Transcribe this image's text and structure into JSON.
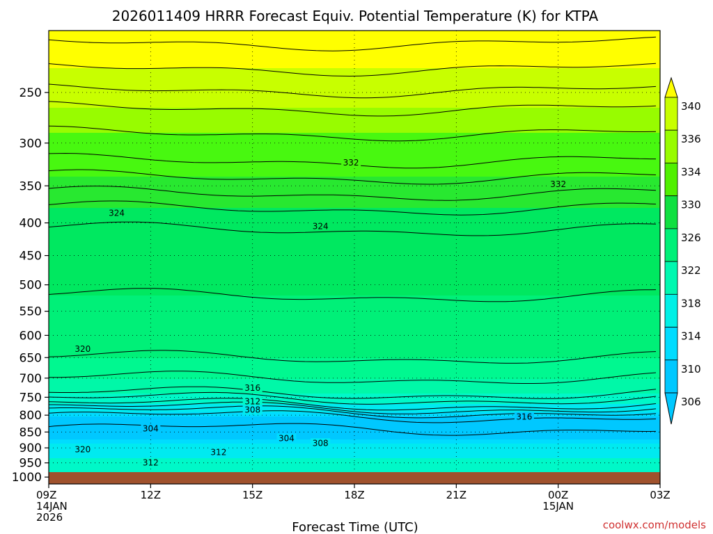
{
  "chart_data": {
    "type": "heatmap",
    "title": "2026011409 HRRR Forecast Equiv. Potential Temperature (K) for KTPA",
    "xlabel": "Forecast Time (UTC)",
    "ylabel": "",
    "x_ticks": [
      {
        "hour": 0,
        "lines": [
          "09Z",
          "14JAN",
          "2026"
        ]
      },
      {
        "hour": 3,
        "lines": [
          "12Z"
        ]
      },
      {
        "hour": 6,
        "lines": [
          "15Z"
        ]
      },
      {
        "hour": 9,
        "lines": [
          "18Z"
        ]
      },
      {
        "hour": 12,
        "lines": [
          "21Z"
        ]
      },
      {
        "hour": 15,
        "lines": [
          "00Z",
          "15JAN"
        ]
      },
      {
        "hour": 18,
        "lines": [
          "03Z"
        ]
      }
    ],
    "xlim_hours": [
      0,
      18
    ],
    "y_scale": "log",
    "y_ticks": [
      250,
      300,
      350,
      400,
      450,
      500,
      550,
      600,
      650,
      700,
      750,
      800,
      850,
      900,
      950,
      1000
    ],
    "ylim": [
      1025,
      200
    ],
    "colorbar": {
      "labels": [
        306,
        310,
        314,
        318,
        322,
        326,
        330,
        334,
        336,
        340
      ],
      "colors": [
        "#00c8ff",
        "#00dcff",
        "#00f0e6",
        "#00f8b0",
        "#00f078",
        "#10e040",
        "#50f000",
        "#98fc00",
        "#c8ff00",
        "#ffff00"
      ],
      "extend": "both"
    },
    "fill_bands": [
      {
        "value": 304,
        "color": "#00c8ff"
      },
      {
        "value": 306,
        "color": "#00dcff"
      },
      {
        "value": 308,
        "color": "#00eaf0"
      },
      {
        "value": 312,
        "color": "#00f8c8"
      },
      {
        "value": 316,
        "color": "#00f8a8"
      },
      {
        "value": 318,
        "color": "#00f890"
      },
      {
        "value": 320,
        "color": "#00f078"
      },
      {
        "value": 322,
        "color": "#00e860"
      },
      {
        "value": 326,
        "color": "#28e830"
      },
      {
        "value": 330,
        "color": "#48f810"
      },
      {
        "value": 334,
        "color": "#98fc00"
      },
      {
        "value": 336,
        "color": "#c8ff00"
      },
      {
        "value": 340,
        "color": "#ffff00"
      }
    ],
    "profile": [
      {
        "p": 200,
        "theta": 343
      },
      {
        "p": 240,
        "theta": 339
      },
      {
        "p": 265,
        "theta": 336
      },
      {
        "p": 290,
        "theta": 334
      },
      {
        "p": 320,
        "theta": 332
      },
      {
        "p": 360,
        "theta": 328
      },
      {
        "p": 390,
        "theta": 325
      },
      {
        "p": 430,
        "theta": 323
      },
      {
        "p": 520,
        "theta": 322
      },
      {
        "p": 600,
        "theta": 321
      },
      {
        "p": 650,
        "theta": 320
      },
      {
        "p": 700,
        "theta": 318
      },
      {
        "p": 740,
        "theta": 316
      },
      {
        "p": 770,
        "theta": 312
      },
      {
        "p": 790,
        "theta": 308
      },
      {
        "p": 810,
        "theta": 305
      },
      {
        "p": 840,
        "theta": 304
      },
      {
        "p": 870,
        "theta": 306
      },
      {
        "p": 900,
        "theta": 310
      },
      {
        "p": 950,
        "theta": 313
      },
      {
        "p": 1000,
        "theta": 316
      }
    ],
    "contour_labels": [
      {
        "text": "332",
        "hour": 8.9,
        "p": 322
      },
      {
        "text": "332",
        "hour": 15.0,
        "p": 348
      },
      {
        "text": "324",
        "hour": 2.0,
        "p": 386
      },
      {
        "text": "324",
        "hour": 8.0,
        "p": 405
      },
      {
        "text": "320",
        "hour": 1.0,
        "p": 630
      },
      {
        "text": "316",
        "hour": 6.0,
        "p": 725
      },
      {
        "text": "312",
        "hour": 6.0,
        "p": 762
      },
      {
        "text": "308",
        "hour": 6.0,
        "p": 785
      },
      {
        "text": "304",
        "hour": 3.0,
        "p": 840
      },
      {
        "text": "304",
        "hour": 7.0,
        "p": 870
      },
      {
        "text": "308",
        "hour": 8.0,
        "p": 885
      },
      {
        "text": "312",
        "hour": 5.0,
        "p": 915
      },
      {
        "text": "320",
        "hour": 1.0,
        "p": 905
      },
      {
        "text": "312",
        "hour": 3.0,
        "p": 950
      },
      {
        "text": "316",
        "hour": 14.0,
        "p": 805
      }
    ],
    "ground_color": "#a0522d",
    "grid": true
  },
  "credit": "coolwx.com/models"
}
